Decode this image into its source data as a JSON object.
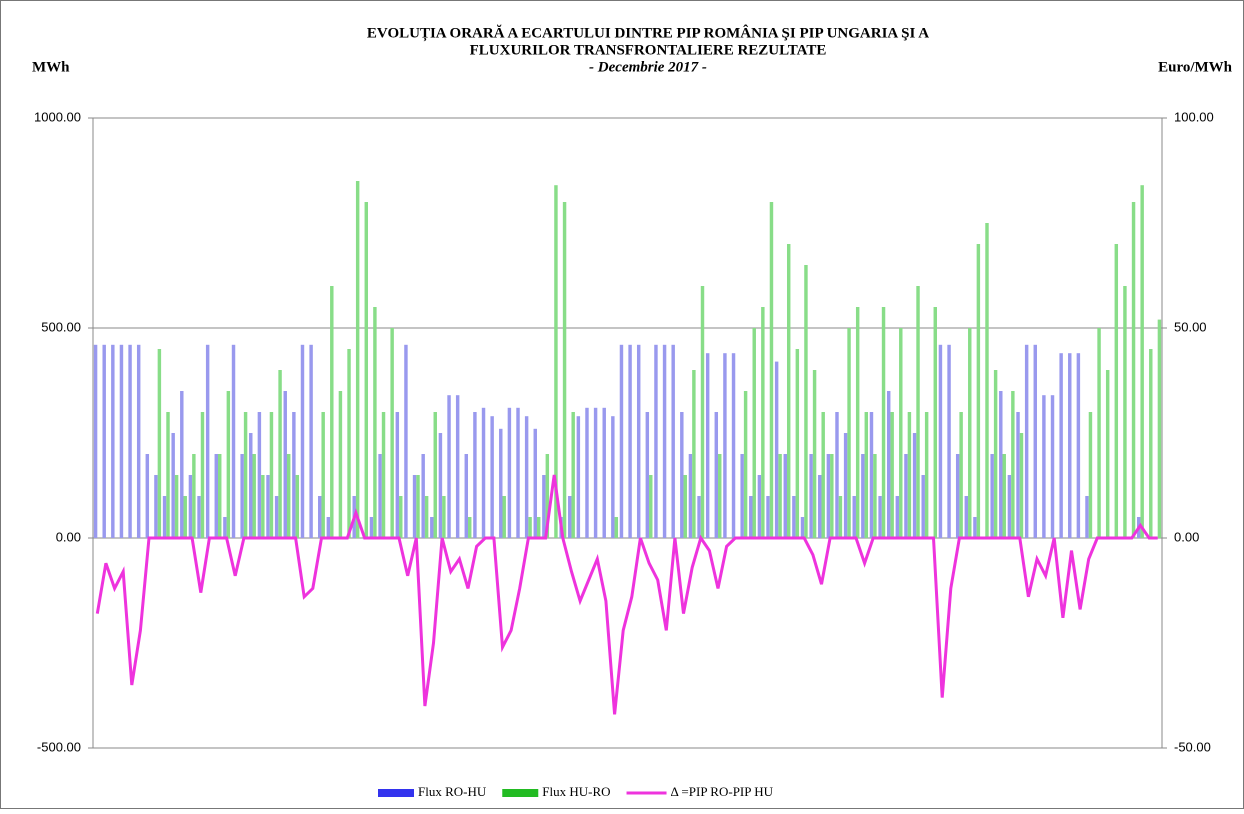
{
  "chart_data": {
    "type": "bar-line",
    "title": [
      "EVOLUȚIA ORARĂ A ECARTULUI DINTRE PIP ROMÂNIA ŞI PIP UNGARIA ŞI A",
      "FLUXURILOR TRANSFRONTALIERE REZULTATE"
    ],
    "subtitle": "- Decembrie  2017 -",
    "y_label": "MWh",
    "y2_label": "Euro/MWh",
    "ylim": [
      -500,
      1000
    ],
    "yticks": [
      {
        "value": -500,
        "label": "-500.00"
      },
      {
        "value": 0,
        "label": "0.00"
      },
      {
        "value": 500,
        "label": "500.00"
      },
      {
        "value": 1000,
        "label": "1000.00"
      }
    ],
    "y2lim": [
      -50,
      100
    ],
    "y2ticks": [
      {
        "value": -50,
        "label": "-50.00"
      },
      {
        "value": 0,
        "label": "0.00"
      },
      {
        "value": 50,
        "label": "50.00"
      },
      {
        "value": 100,
        "label": "100.00"
      }
    ],
    "grid": true,
    "legend": "bottom",
    "series": [
      {
        "name": "Flux RO-HU",
        "type": "bar",
        "color": "#9999ee",
        "legend_color": "#3333ee",
        "values": [
          460,
          460,
          460,
          460,
          460,
          460,
          200,
          150,
          100,
          250,
          350,
          150,
          100,
          460,
          200,
          50,
          460,
          200,
          250,
          300,
          150,
          100,
          350,
          300,
          460,
          460,
          100,
          50,
          0,
          0,
          100,
          0,
          50,
          200,
          0,
          300,
          460,
          150,
          200,
          50,
          250,
          340,
          340,
          200,
          300,
          310,
          290,
          260,
          310,
          310,
          290,
          260,
          150,
          0,
          50,
          100,
          290,
          310,
          310,
          310,
          290,
          460,
          460,
          460,
          300,
          460,
          460,
          460,
          300,
          200,
          100,
          440,
          300,
          440,
          440,
          200,
          100,
          150,
          100,
          420,
          200,
          100,
          50,
          200,
          150,
          200,
          300,
          250,
          100,
          200,
          300,
          100,
          350,
          100,
          200,
          250,
          150,
          0,
          460,
          460,
          200,
          100,
          50,
          0,
          200,
          350,
          150,
          300,
          460,
          460,
          340,
          340,
          440,
          440,
          440,
          100,
          0,
          0,
          0,
          0,
          0,
          50,
          0,
          0
        ]
      },
      {
        "name": "Flux HU-RO",
        "type": "bar",
        "color": "#88dd88",
        "legend_color": "#22bb22",
        "values": [
          0,
          0,
          0,
          0,
          0,
          0,
          0,
          450,
          300,
          150,
          100,
          200,
          300,
          0,
          200,
          350,
          0,
          300,
          200,
          150,
          300,
          400,
          200,
          150,
          0,
          0,
          300,
          600,
          350,
          450,
          850,
          800,
          550,
          300,
          500,
          100,
          0,
          150,
          100,
          300,
          100,
          0,
          0,
          50,
          0,
          0,
          0,
          100,
          0,
          0,
          50,
          50,
          200,
          840,
          800,
          300,
          0,
          0,
          0,
          0,
          50,
          0,
          0,
          0,
          150,
          0,
          0,
          0,
          150,
          400,
          600,
          0,
          200,
          0,
          0,
          350,
          500,
          550,
          800,
          200,
          700,
          450,
          650,
          400,
          300,
          200,
          100,
          500,
          550,
          300,
          200,
          550,
          300,
          500,
          300,
          600,
          300,
          550,
          0,
          0,
          300,
          500,
          700,
          750,
          400,
          200,
          350,
          250,
          0,
          0,
          0,
          0,
          0,
          0,
          0,
          300,
          500,
          400,
          700,
          600,
          800,
          840,
          450,
          520
        ]
      },
      {
        "name": "Δ =PIP RO-PIP HU",
        "type": "line",
        "axis": "y2",
        "color": "#ee33dd",
        "values": [
          -18,
          -6,
          -12,
          -8,
          -35,
          -22,
          0,
          0,
          0,
          0,
          0,
          0,
          -13,
          0,
          0,
          0,
          -9,
          0,
          0,
          0,
          0,
          0,
          0,
          0,
          -14,
          -12,
          0,
          0,
          0,
          0,
          6,
          0,
          0,
          0,
          0,
          0,
          -9,
          0,
          -40,
          -25,
          0,
          -8,
          -5,
          -12,
          -2,
          0,
          0,
          -26,
          -22,
          -12,
          0,
          0,
          0,
          15,
          0,
          -8,
          -15,
          -10,
          -5,
          -15,
          -42,
          -22,
          -14,
          0,
          -6,
          -10,
          -22,
          0,
          -18,
          -7,
          0,
          -3,
          -12,
          -2,
          0,
          0,
          0,
          0,
          0,
          0,
          0,
          0,
          0,
          -4,
          -11,
          0,
          0,
          0,
          0,
          -6,
          0,
          0,
          0,
          0,
          0,
          0,
          0,
          0,
          -38,
          -12,
          0,
          0,
          0,
          0,
          0,
          0,
          0,
          0,
          -14,
          -5,
          -9,
          0,
          -19,
          -3,
          -17,
          -5,
          0,
          0,
          0,
          0,
          0,
          3,
          0,
          0
        ]
      }
    ]
  }
}
